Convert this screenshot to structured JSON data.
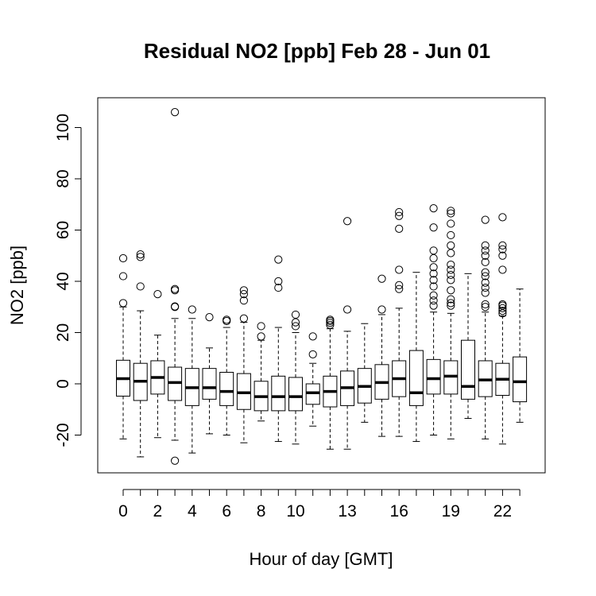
{
  "chart_data": {
    "type": "box",
    "title": "Residual NO2 [ppb] Feb 28 - Jun 01",
    "xlabel": "Hour of day [GMT]",
    "ylabel": "NO2 [ppb]",
    "ylim": [
      -35,
      112
    ],
    "yticks": [
      -20,
      0,
      20,
      40,
      60,
      80,
      100
    ],
    "xtick_labels_shown": [
      "0",
      "2",
      "4",
      "6",
      "8",
      "10",
      "13",
      "16",
      "19",
      "22"
    ],
    "categories": [
      "0",
      "1",
      "2",
      "3",
      "4",
      "5",
      "6",
      "7",
      "8",
      "9",
      "10",
      "11",
      "12",
      "13",
      "14",
      "15",
      "16",
      "17",
      "18",
      "19",
      "20",
      "21",
      "22",
      "23"
    ],
    "boxes": [
      {
        "hour": 0,
        "lower_whisker": -21.5,
        "q1": -4.8,
        "median": 2.0,
        "q3": 9.2,
        "upper_whisker": 30,
        "outliers": [
          31.5,
          42,
          49
        ]
      },
      {
        "hour": 1,
        "lower_whisker": -28.5,
        "q1": -6.5,
        "median": 1.0,
        "q3": 8.0,
        "upper_whisker": 28.5,
        "outliers": [
          38,
          49.5,
          50.5
        ]
      },
      {
        "hour": 2,
        "lower_whisker": -21,
        "q1": -4,
        "median": 2.5,
        "q3": 9.0,
        "upper_whisker": 19,
        "outliers": [
          35
        ]
      },
      {
        "hour": 3,
        "lower_whisker": -22,
        "q1": -6.5,
        "median": 0.5,
        "q3": 6.5,
        "upper_whisker": 25.5,
        "outliers": [
          -30,
          30,
          30.2,
          36.5,
          37,
          106
        ]
      },
      {
        "hour": 4,
        "lower_whisker": -27,
        "q1": -8.5,
        "median": -1.5,
        "q3": 6.0,
        "upper_whisker": 25.5,
        "outliers": [
          29
        ]
      },
      {
        "hour": 5,
        "lower_whisker": -19.5,
        "q1": -6,
        "median": -1.5,
        "q3": 6.0,
        "upper_whisker": 14,
        "outliers": [
          26
        ]
      },
      {
        "hour": 6,
        "lower_whisker": -20,
        "q1": -8.5,
        "median": -3.0,
        "q3": 4.5,
        "upper_whisker": 22,
        "outliers": [
          24.5,
          25
        ]
      },
      {
        "hour": 7,
        "lower_whisker": -23,
        "q1": -10,
        "median": -3.5,
        "q3": 4.0,
        "upper_whisker": 24,
        "outliers": [
          25.5,
          32.5,
          35,
          36.5
        ]
      },
      {
        "hour": 8,
        "lower_whisker": -14.5,
        "q1": -10.5,
        "median": -5.0,
        "q3": 1.0,
        "upper_whisker": 17,
        "outliers": [
          18.5,
          22.5
        ]
      },
      {
        "hour": 9,
        "lower_whisker": -22.5,
        "q1": -10.5,
        "median": -5.0,
        "q3": 3.0,
        "upper_whisker": 22,
        "outliers": [
          37.5,
          40,
          48.5
        ]
      },
      {
        "hour": 10,
        "lower_whisker": -23.5,
        "q1": -10.5,
        "median": -5.0,
        "q3": 2.5,
        "upper_whisker": 20,
        "outliers": [
          22.5,
          24,
          27
        ]
      },
      {
        "hour": 11,
        "lower_whisker": -16.5,
        "q1": -8,
        "median": -3.5,
        "q3": 0.0,
        "upper_whisker": 8,
        "outliers": [
          11.5,
          18.5
        ]
      },
      {
        "hour": 12,
        "lower_whisker": -25.5,
        "q1": -9,
        "median": -3.0,
        "q3": 3.0,
        "upper_whisker": 21.5,
        "outliers": [
          23,
          23.8,
          24.5,
          25
        ]
      },
      {
        "hour": 13,
        "lower_whisker": -25.5,
        "q1": -8.5,
        "median": -1.5,
        "q3": 5.0,
        "upper_whisker": 20.5,
        "outliers": [
          29,
          63.5
        ]
      },
      {
        "hour": 14,
        "lower_whisker": -15,
        "q1": -7.5,
        "median": -1.0,
        "q3": 6.0,
        "upper_whisker": 23.5,
        "outliers": []
      },
      {
        "hour": 15,
        "lower_whisker": -20.5,
        "q1": -6,
        "median": 0.5,
        "q3": 7.5,
        "upper_whisker": 27,
        "outliers": [
          29,
          41
        ]
      },
      {
        "hour": 16,
        "lower_whisker": -20.5,
        "q1": -5,
        "median": 2.0,
        "q3": 9.0,
        "upper_whisker": 29.5,
        "outliers": [
          37,
          38.5,
          44.5,
          60.5,
          65.5,
          67
        ]
      },
      {
        "hour": 17,
        "lower_whisker": -22.5,
        "q1": -8.5,
        "median": -3.5,
        "q3": 13.0,
        "upper_whisker": 43.5,
        "outliers": []
      },
      {
        "hour": 18,
        "lower_whisker": -20,
        "q1": -4,
        "median": 2.0,
        "q3": 9.5,
        "upper_whisker": 28,
        "outliers": [
          30.5,
          32.5,
          34.5,
          38,
          40.5,
          43,
          45.5,
          49,
          52,
          61,
          68.5
        ]
      },
      {
        "hour": 19,
        "lower_whisker": -21.5,
        "q1": -4,
        "median": 3.0,
        "q3": 9.0,
        "upper_whisker": 27.5,
        "outliers": [
          30.5,
          31.5,
          33,
          36.5,
          40.5,
          42.5,
          44.5,
          46.5,
          51,
          54,
          58,
          62.5,
          66.5,
          67.5
        ]
      },
      {
        "hour": 20,
        "lower_whisker": -13.5,
        "q1": -6,
        "median": -1.0,
        "q3": 17.0,
        "upper_whisker": 43,
        "outliers": []
      },
      {
        "hour": 21,
        "lower_whisker": -21.5,
        "q1": -5,
        "median": 1.5,
        "q3": 9.0,
        "upper_whisker": 28,
        "outliers": [
          30,
          31,
          35.5,
          37.5,
          39.5,
          42,
          43.5,
          47.5,
          50,
          52,
          54,
          64
        ]
      },
      {
        "hour": 22,
        "lower_whisker": -23.5,
        "q1": -4.5,
        "median": 1.8,
        "q3": 8.0,
        "upper_whisker": 26.5,
        "outliers": [
          27.5,
          28.5,
          29.5,
          30.5,
          31,
          44.5,
          50,
          52.5,
          54,
          65
        ]
      },
      {
        "hour": 23,
        "lower_whisker": -15,
        "q1": -7,
        "median": 0.8,
        "q3": 10.5,
        "upper_whisker": 37,
        "outliers": []
      }
    ]
  }
}
